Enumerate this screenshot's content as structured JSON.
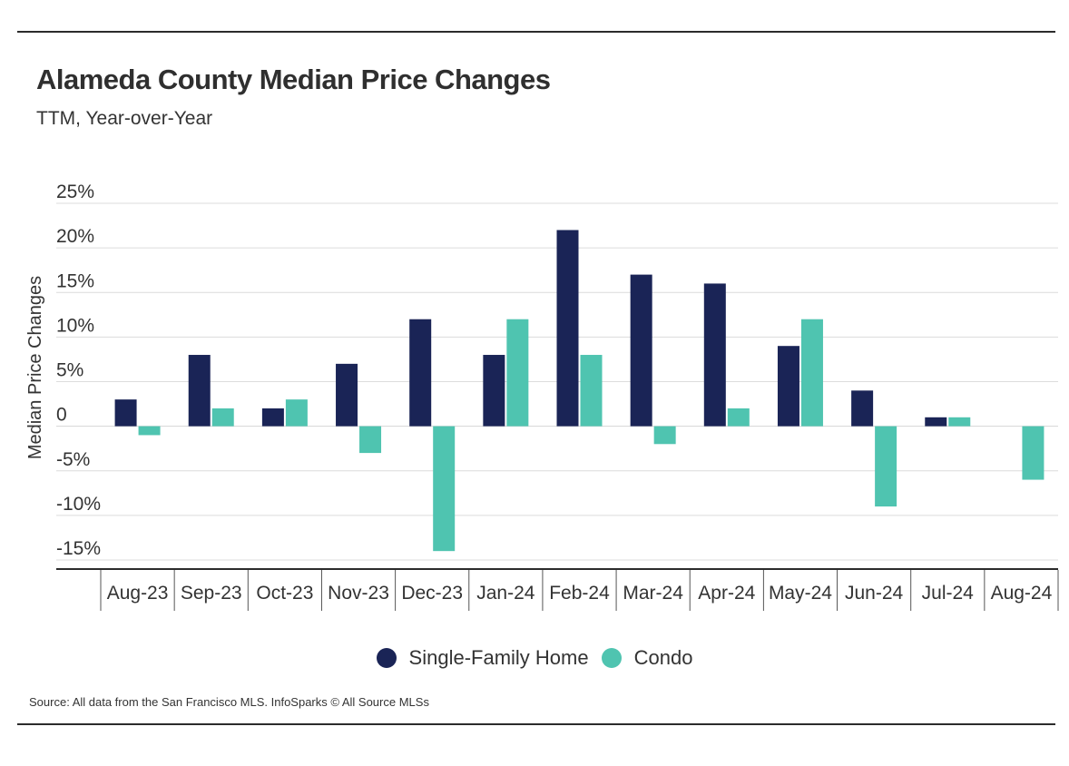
{
  "header": {
    "title": "Alameda County Median Price Changes",
    "subtitle": "TTM, Year-over-Year"
  },
  "source": "Source:  All data from the San Francisco MLS. InfoSparks © All Source MLSs",
  "colors": {
    "single_family": "#1a2456",
    "condo": "#4fc4b0"
  },
  "chart_data": {
    "type": "bar",
    "categories": [
      "Aug-23",
      "Sep-23",
      "Oct-23",
      "Nov-23",
      "Dec-23",
      "Jan-24",
      "Feb-24",
      "Mar-24",
      "Apr-24",
      "May-24",
      "Jun-24",
      "Jul-24",
      "Aug-24"
    ],
    "series": [
      {
        "name": "Single-Family Home",
        "values": [
          3,
          8,
          2,
          7,
          12,
          8,
          22,
          17,
          16,
          9,
          4,
          1,
          0
        ]
      },
      {
        "name": "Condo",
        "values": [
          -1,
          2,
          3,
          -3,
          -14,
          12,
          8,
          -2,
          2,
          12,
          -9,
          1,
          -6
        ]
      }
    ],
    "title": "Alameda County Median Price Changes",
    "subtitle": "TTM, Year-over-Year",
    "ylabel": "Median Price Changes",
    "ylim": [
      -15,
      25
    ],
    "yticks": [
      25,
      20,
      15,
      10,
      5,
      0,
      -5,
      -10,
      -15
    ],
    "ytick_labels": [
      "25%",
      "20%",
      "15%",
      "10%",
      "5%",
      "0",
      "-5%",
      "-10%",
      "-15%"
    ],
    "grid": true,
    "legend": "bottom-center"
  }
}
